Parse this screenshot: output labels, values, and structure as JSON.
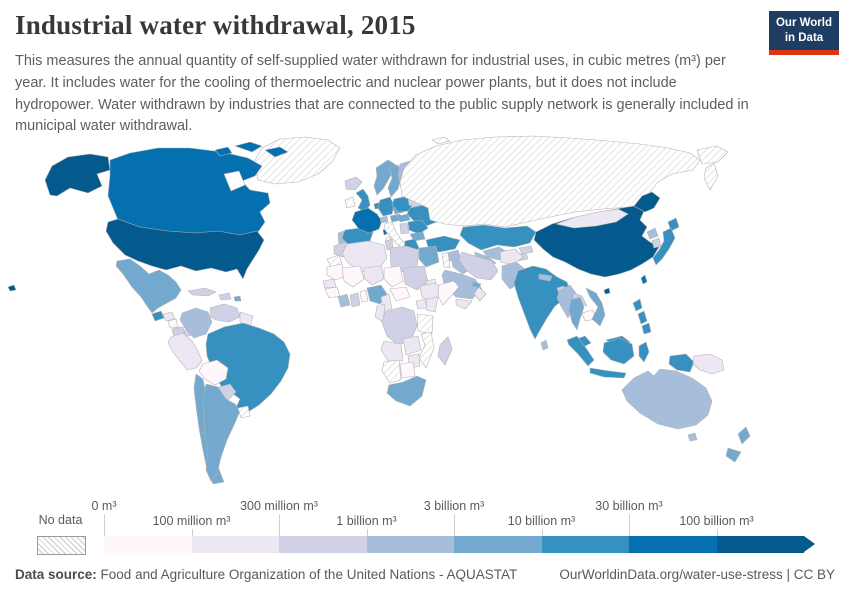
{
  "header": {
    "title": "Industrial water withdrawal, 2015",
    "subtitle": "This measures the annual quantity of self-supplied water withdrawn for industrial uses, in cubic metres (m³) per year. It includes water for the cooling of thermoelectric and nuclear power plants, but it does not include hydropower. Water withdrawn by industries that are connected to the public supply network is generally included in municipal water withdrawal.",
    "logo": {
      "line1": "Our World",
      "line2": "in Data",
      "bg_color": "#1d3d63",
      "accent_color": "#dc3512"
    }
  },
  "legend": {
    "no_data_label": "No data",
    "tick_labels": [
      "0 m³",
      "100 million m³",
      "300 million m³",
      "1 billion m³",
      "3 billion m³",
      "10 billion m³",
      "30 billion m³",
      "100 billion m³"
    ],
    "colors": [
      "#fff7fb",
      "#ece7f2",
      "#d0d1e6",
      "#a6bddb",
      "#74a9cf",
      "#3690c0",
      "#0570b0",
      "#045a8d"
    ]
  },
  "footer": {
    "source_label": "Data source:",
    "source_text": "Food and Agriculture Organization of the United Nations - AQUASTAT",
    "link": "OurWorldinData.org/water-use-stress",
    "separator": " | ",
    "license": "CC BY"
  },
  "chart_data": {
    "type": "choropleth_map",
    "title": "Industrial water withdrawal, 2015",
    "unit": "m³ per year",
    "bins": [
      "0–100 million m³",
      "100–300 million m³",
      "300 million–1 billion m³",
      "1–3 billion m³",
      "3–10 billion m³",
      "10–30 billion m³",
      "30–100 billion m³",
      "100+ billion m³"
    ],
    "bin_colors": [
      "#fff7fb",
      "#ece7f2",
      "#d0d1e6",
      "#a6bddb",
      "#74a9cf",
      "#3690c0",
      "#0570b0",
      "#045a8d"
    ],
    "no_data_countries": [
      "Russia",
      "Greenland",
      "Italy",
      "Uruguay",
      "Tanzania",
      "Mozambique",
      "Namibia",
      "Western Sahara",
      "Israel",
      "Svalbard"
    ],
    "countries": {
      "United States": 7,
      "China": 7,
      "Canada": 6,
      "France": 6,
      "Taiwan": 6,
      "Brazil": 5,
      "India": 5,
      "Germany": 5,
      "United Kingdom": 5,
      "Spain": 5,
      "Poland": 5,
      "Ukraine": 5,
      "Romania": 5,
      "Kazakhstan": 5,
      "Turkey": 5,
      "Japan": 5,
      "Indonesia": 5,
      "Malaysia": 5,
      "Philippines": 5,
      "Greece": 5,
      "Guatemala": 5,
      "Netherlands": 5,
      "Mexico": 4,
      "Argentina": 4,
      "Chile": 4,
      "Norway": 4,
      "Sweden": 4,
      "Vietnam": 4,
      "Thailand": 4,
      "Egypt": 4,
      "Nigeria": 4,
      "South Africa": 4,
      "New Zealand": 4,
      "Bulgaria": 4,
      "Austria": 4,
      "Czechia": 4,
      "Hungary": 4,
      "Puerto Rico": 4,
      "United Arab Emirates": 4,
      "Finland": 3,
      "Australia": 3,
      "Colombia": 3,
      "Saudi Arabia": 3,
      "Iraq": 3,
      "Syria": 3,
      "Pakistan": 3,
      "Uzbekistan": 3,
      "Turkmenistan": 3,
      "Myanmar": 3,
      "North Korea": 3,
      "Cote d'Ivoire": 3,
      "Portugal": 3,
      "Sri Lanka": 3,
      "Nepal": 3,
      "Denmark": 3,
      "Switzerland": 3,
      "Venezuela": 2,
      "Cuba": 2,
      "Belarus": 2,
      "Iran": 2,
      "Libya": 2,
      "Morocco": 2,
      "Tunisia": 2,
      "Sudan": 2,
      "DR Congo": 2,
      "Madagascar": 2,
      "Ghana": 2,
      "Laos": 2,
      "Bangladesh": 2,
      "South Korea": 2,
      "Paraguay": 2,
      "Ecuador": 2,
      "Panama": 2,
      "Iceland": 2,
      "Kyrgyzstan": 2,
      "Tajikistan": 2,
      "Serbia": 2,
      "Dominican Republic": 2,
      "Lithuania": 2,
      "Algeria": 1,
      "Mongolia": 1,
      "Afghanistan": 1,
      "Ethiopia": 1,
      "Kenya": 1,
      "Angola": 1,
      "Zambia": 1,
      "Zimbabwe": 1,
      "Peru": 1,
      "Guyana": 1,
      "Senegal": 1,
      "Cameroon": 1,
      "Yemen": 1,
      "Oman": 1,
      "Honduras": 1,
      "Costa Rica": 1,
      "Papua New Guinea": 1,
      "Niger": 1,
      "Uganda": 1,
      "Congo": 1,
      "Eritrea": 1,
      "Bolivia": 0,
      "Mali": 0,
      "Mauritania": 0,
      "Chad": 0,
      "Somalia": 0,
      "Botswana": 0,
      "Central African Republic": 0,
      "Nicaragua": 0,
      "Cambodia": 0,
      "Ireland": 0,
      "Guinea": 0,
      "Benin": 0
    }
  }
}
